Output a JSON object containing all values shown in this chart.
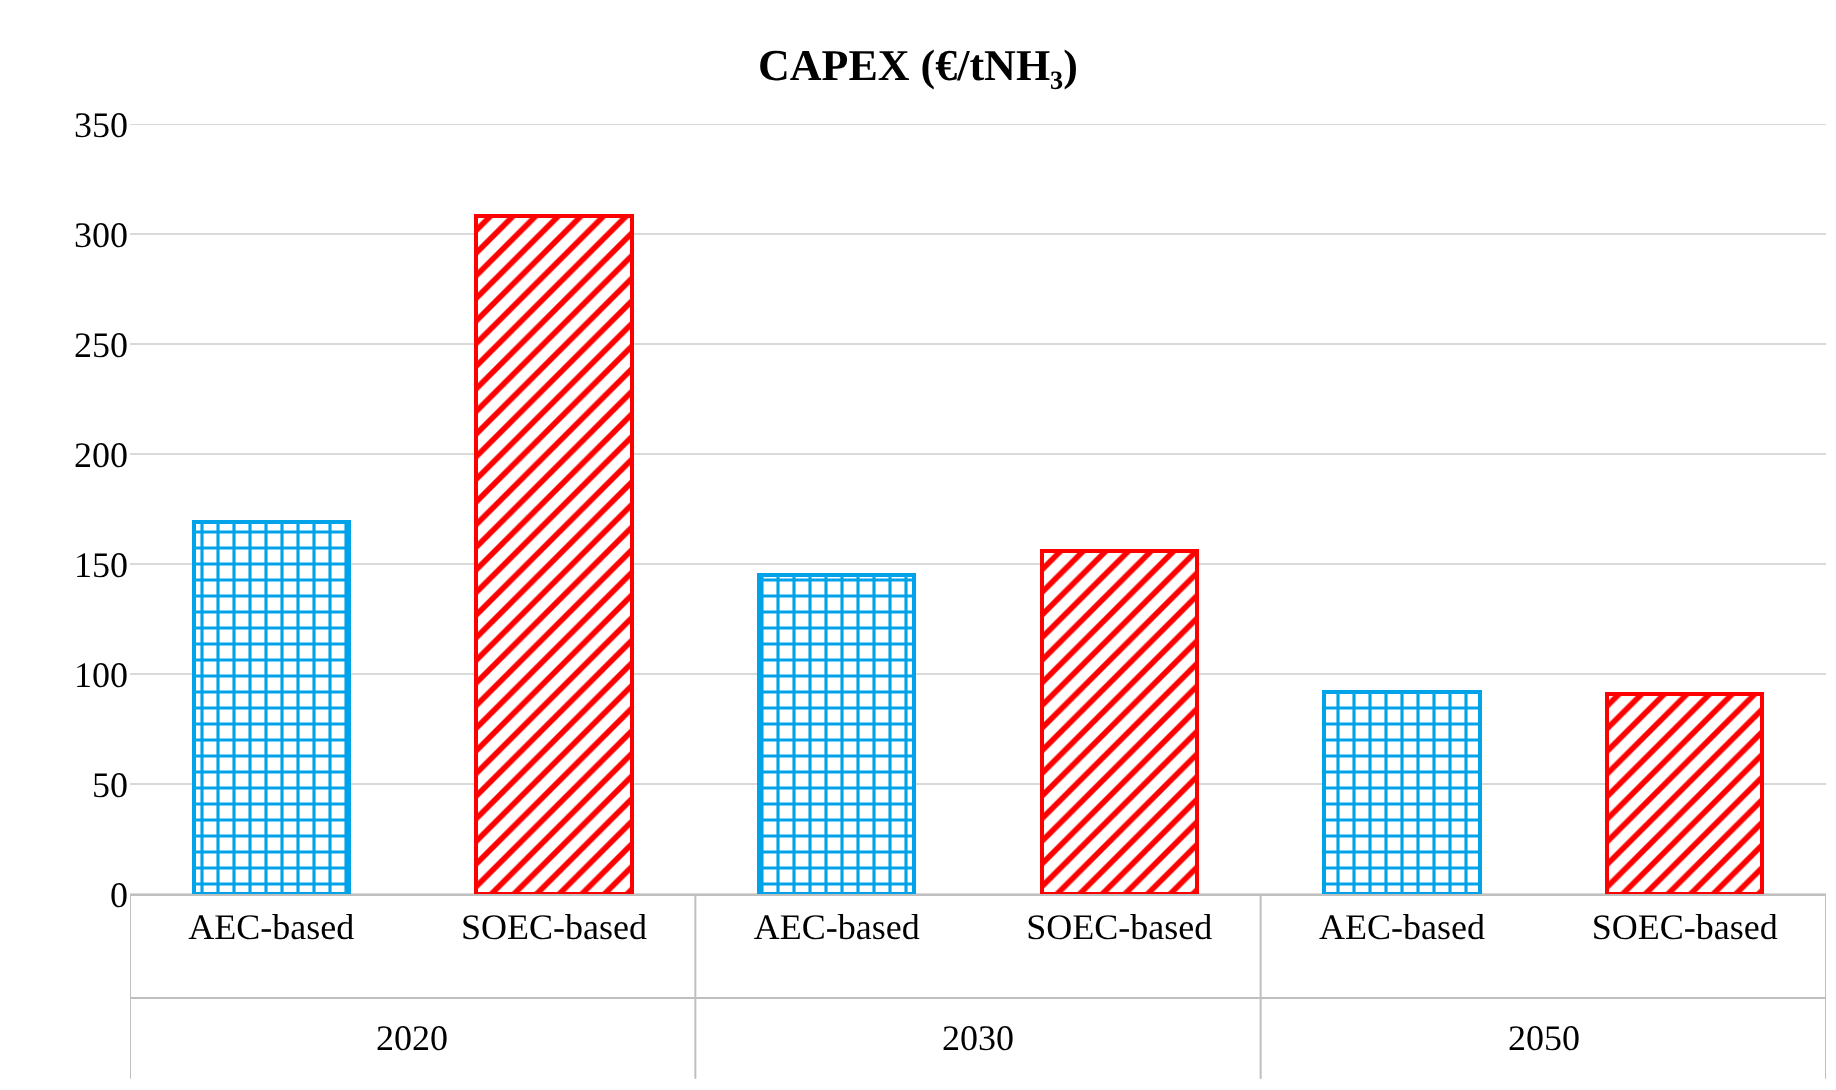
{
  "chart_data": {
    "type": "bar",
    "title": "CAPEX (€/tNH₃)",
    "categories": [
      "AEC-based",
      "SOEC-based",
      "AEC-based",
      "SOEC-based",
      "AEC-based",
      "SOEC-based"
    ],
    "series": [
      {
        "color": "#00a2e8",
        "values": [
          169,
          null,
          145,
          null,
          92,
          null
        ]
      },
      {
        "color": "#ff0000",
        "values": [
          null,
          308,
          null,
          156,
          null,
          91
        ]
      }
    ],
    "annotations": [
      "2020",
      "2030",
      "2050"
    ],
    "ylim": [
      0,
      350
    ],
    "yticks": [
      0,
      50,
      100,
      150,
      200,
      250,
      300,
      350
    ],
    "grid": "y",
    "stacked": true
  }
}
